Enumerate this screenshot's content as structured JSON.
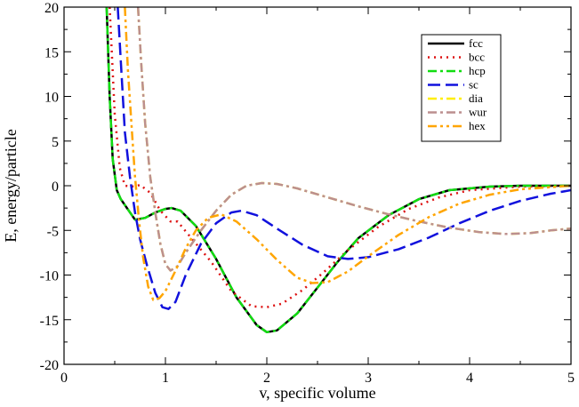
{
  "chart_data": {
    "type": "line",
    "xlabel": "v, specific volume",
    "ylabel": "E, energy/particle",
    "xlim": [
      0,
      5
    ],
    "ylim": [
      -20,
      20
    ],
    "x_ticks": [
      "0",
      "1",
      "2",
      "3",
      "4",
      "5"
    ],
    "y_ticks": [
      "-20",
      "-15",
      "-10",
      "-5",
      "0",
      "5",
      "10",
      "15",
      "20"
    ],
    "grid": false,
    "legend_position": "top-right",
    "series": [
      {
        "name": "fcc",
        "color": "#000000",
        "dash": "solid",
        "points": [
          [
            0.42,
            20
          ],
          [
            0.45,
            10
          ],
          [
            0.48,
            3
          ],
          [
            0.52,
            -0.5
          ],
          [
            0.56,
            -1.5
          ],
          [
            0.62,
            -2.5
          ],
          [
            0.7,
            -3.8
          ],
          [
            0.8,
            -3.6
          ],
          [
            0.9,
            -3.0
          ],
          [
            1.0,
            -2.6
          ],
          [
            1.06,
            -2.5
          ],
          [
            1.15,
            -2.8
          ],
          [
            1.3,
            -4.5
          ],
          [
            1.5,
            -8.2
          ],
          [
            1.7,
            -12.5
          ],
          [
            1.9,
            -15.6
          ],
          [
            2.0,
            -16.4
          ],
          [
            2.1,
            -16.2
          ],
          [
            2.3,
            -14.3
          ],
          [
            2.5,
            -11.4
          ],
          [
            2.7,
            -8.5
          ],
          [
            2.9,
            -5.9
          ],
          [
            3.2,
            -3.3
          ],
          [
            3.5,
            -1.5
          ],
          [
            3.8,
            -0.5
          ],
          [
            4.2,
            -0.1
          ],
          [
            4.5,
            0
          ],
          [
            5.0,
            0
          ]
        ]
      },
      {
        "name": "bcc",
        "color": "#dd1111",
        "dash": "2 5",
        "points": [
          [
            0.45,
            20
          ],
          [
            0.5,
            8
          ],
          [
            0.55,
            2
          ],
          [
            0.6,
            0
          ],
          [
            0.7,
            -0.1
          ],
          [
            0.75,
            0.1
          ],
          [
            0.85,
            -0.8
          ],
          [
            0.95,
            -2.8
          ],
          [
            1.05,
            -4.0
          ],
          [
            1.12,
            -4.0
          ],
          [
            1.25,
            -5.8
          ],
          [
            1.45,
            -8.5
          ],
          [
            1.65,
            -11.8
          ],
          [
            1.85,
            -13.5
          ],
          [
            2.0,
            -13.6
          ],
          [
            2.15,
            -13.2
          ],
          [
            2.35,
            -11.7
          ],
          [
            2.55,
            -9.8
          ],
          [
            2.8,
            -7.2
          ],
          [
            3.1,
            -4.6
          ],
          [
            3.4,
            -2.6
          ],
          [
            3.7,
            -1.3
          ],
          [
            4.0,
            -0.5
          ],
          [
            4.5,
            -0.1
          ],
          [
            5.0,
            0
          ]
        ]
      },
      {
        "name": "hcp",
        "color": "#11dd11",
        "dash": "10 4 3 4",
        "points": [
          [
            0.42,
            20
          ],
          [
            0.45,
            10
          ],
          [
            0.48,
            3
          ],
          [
            0.52,
            -0.5
          ],
          [
            0.56,
            -1.5
          ],
          [
            0.62,
            -2.5
          ],
          [
            0.7,
            -3.8
          ],
          [
            0.8,
            -3.6
          ],
          [
            0.9,
            -3.0
          ],
          [
            1.0,
            -2.6
          ],
          [
            1.06,
            -2.5
          ],
          [
            1.15,
            -2.8
          ],
          [
            1.3,
            -4.5
          ],
          [
            1.5,
            -8.2
          ],
          [
            1.7,
            -12.5
          ],
          [
            1.9,
            -15.6
          ],
          [
            2.0,
            -16.4
          ],
          [
            2.1,
            -16.2
          ],
          [
            2.3,
            -14.3
          ],
          [
            2.5,
            -11.4
          ],
          [
            2.7,
            -8.5
          ],
          [
            2.9,
            -5.9
          ],
          [
            3.2,
            -3.3
          ],
          [
            3.5,
            -1.5
          ],
          [
            3.8,
            -0.5
          ],
          [
            4.2,
            -0.1
          ],
          [
            4.5,
            0
          ],
          [
            5.0,
            0
          ]
        ]
      },
      {
        "name": "sc",
        "color": "#1111dd",
        "dash": "14 6",
        "points": [
          [
            0.53,
            20
          ],
          [
            0.56,
            14
          ],
          [
            0.6,
            6
          ],
          [
            0.65,
            1
          ],
          [
            0.7,
            -3
          ],
          [
            0.75,
            -6
          ],
          [
            0.82,
            -9
          ],
          [
            0.9,
            -12
          ],
          [
            0.97,
            -13.6
          ],
          [
            1.03,
            -13.8
          ],
          [
            1.1,
            -13
          ],
          [
            1.2,
            -10
          ],
          [
            1.35,
            -6.5
          ],
          [
            1.5,
            -4.2
          ],
          [
            1.65,
            -3.0
          ],
          [
            1.75,
            -2.8
          ],
          [
            1.9,
            -3.3
          ],
          [
            2.1,
            -4.8
          ],
          [
            2.35,
            -6.6
          ],
          [
            2.6,
            -7.9
          ],
          [
            2.8,
            -8.2
          ],
          [
            3.0,
            -8.0
          ],
          [
            3.3,
            -7.1
          ],
          [
            3.6,
            -5.8
          ],
          [
            3.9,
            -4.2
          ],
          [
            4.2,
            -2.8
          ],
          [
            4.5,
            -1.7
          ],
          [
            4.8,
            -0.9
          ],
          [
            5.0,
            -0.5
          ]
        ]
      },
      {
        "name": "dia",
        "color": "#ffee00",
        "dash": "10 4 3 4",
        "points": [
          [
            0.73,
            20
          ],
          [
            0.76,
            14
          ],
          [
            0.8,
            7
          ],
          [
            0.85,
            1
          ],
          [
            0.9,
            -3
          ],
          [
            0.95,
            -6.5
          ],
          [
            1.0,
            -8.8
          ],
          [
            1.05,
            -9.5
          ],
          [
            1.12,
            -9.0
          ],
          [
            1.2,
            -7.5
          ],
          [
            1.35,
            -5.0
          ],
          [
            1.5,
            -2.8
          ],
          [
            1.65,
            -1.0
          ],
          [
            1.8,
            0
          ],
          [
            1.95,
            0.3
          ],
          [
            2.1,
            0.2
          ],
          [
            2.3,
            -0.3
          ],
          [
            2.6,
            -1.3
          ],
          [
            2.9,
            -2.3
          ],
          [
            3.2,
            -3.2
          ],
          [
            3.5,
            -4.0
          ],
          [
            3.8,
            -4.7
          ],
          [
            4.1,
            -5.2
          ],
          [
            4.35,
            -5.4
          ],
          [
            4.6,
            -5.3
          ],
          [
            4.8,
            -5.0
          ],
          [
            5.0,
            -4.8
          ]
        ]
      },
      {
        "name": "wur",
        "color": "#bc8f8f",
        "dash": "10 4 3 4",
        "points": [
          [
            0.73,
            20
          ],
          [
            0.76,
            14
          ],
          [
            0.8,
            7
          ],
          [
            0.85,
            1
          ],
          [
            0.9,
            -3
          ],
          [
            0.95,
            -6.5
          ],
          [
            1.0,
            -8.8
          ],
          [
            1.05,
            -9.5
          ],
          [
            1.12,
            -9.0
          ],
          [
            1.2,
            -7.5
          ],
          [
            1.35,
            -5.0
          ],
          [
            1.5,
            -2.8
          ],
          [
            1.65,
            -1.0
          ],
          [
            1.8,
            0
          ],
          [
            1.95,
            0.3
          ],
          [
            2.1,
            0.2
          ],
          [
            2.3,
            -0.3
          ],
          [
            2.6,
            -1.3
          ],
          [
            2.9,
            -2.3
          ],
          [
            3.2,
            -3.2
          ],
          [
            3.5,
            -4.0
          ],
          [
            3.8,
            -4.7
          ],
          [
            4.1,
            -5.2
          ],
          [
            4.35,
            -5.4
          ],
          [
            4.6,
            -5.3
          ],
          [
            4.8,
            -5.0
          ],
          [
            5.0,
            -4.8
          ]
        ]
      },
      {
        "name": "hex",
        "color": "#ffa500",
        "dash": "10 4 3 4 3 4",
        "points": [
          [
            0.6,
            20
          ],
          [
            0.63,
            13
          ],
          [
            0.67,
            6
          ],
          [
            0.7,
            1
          ],
          [
            0.74,
            -4
          ],
          [
            0.78,
            -8
          ],
          [
            0.83,
            -11.3
          ],
          [
            0.88,
            -12.8
          ],
          [
            0.94,
            -12.6
          ],
          [
            1.0,
            -11.8
          ],
          [
            1.1,
            -9.5
          ],
          [
            1.2,
            -7.0
          ],
          [
            1.3,
            -5.0
          ],
          [
            1.42,
            -3.6
          ],
          [
            1.55,
            -3.2
          ],
          [
            1.7,
            -4.0
          ],
          [
            1.9,
            -6.0
          ],
          [
            2.1,
            -8.3
          ],
          [
            2.3,
            -10.3
          ],
          [
            2.45,
            -10.9
          ],
          [
            2.6,
            -10.8
          ],
          [
            2.8,
            -9.6
          ],
          [
            3.0,
            -7.9
          ],
          [
            3.3,
            -5.5
          ],
          [
            3.6,
            -3.5
          ],
          [
            3.9,
            -2.0
          ],
          [
            4.2,
            -1.0
          ],
          [
            4.5,
            -0.4
          ],
          [
            5.0,
            0
          ]
        ]
      }
    ]
  }
}
